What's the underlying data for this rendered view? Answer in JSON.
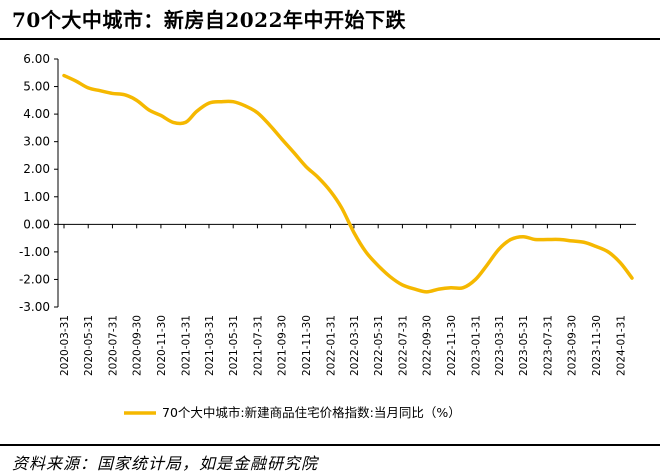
{
  "header": {
    "title": "70个大中城市：新房自2022年中开始下跌"
  },
  "footer": {
    "source": "资料来源：国家统计局，如是金融研究院"
  },
  "colors": {
    "series": "#F5B800",
    "axis": "#000000"
  },
  "chart_data": {
    "type": "line",
    "title": "70个大中城市：新房自2022年中开始下跌",
    "ylim": [
      -3.0,
      6.0
    ],
    "yticks": [
      "6.00",
      "5.00",
      "4.00",
      "3.00",
      "2.00",
      "1.00",
      "0.00",
      "-1.00",
      "-2.00",
      "-3.00"
    ],
    "ytick_values": [
      6,
      5,
      4,
      3,
      2,
      1,
      0,
      -1,
      -2,
      -3
    ],
    "xtick_labels": [
      "2020-03-31",
      "2020-05-31",
      "2020-07-31",
      "2020-09-30",
      "2020-11-30",
      "2021-01-31",
      "2021-03-31",
      "2021-05-31",
      "2021-07-31",
      "2021-09-30",
      "2021-11-30",
      "2022-01-31",
      "2022-03-31",
      "2022-05-31",
      "2022-07-31",
      "2022-09-30",
      "2022-11-30",
      "2023-01-31",
      "2023-03-31",
      "2023-05-31",
      "2023-07-31",
      "2023-09-30",
      "2023-11-30",
      "2024-01-31"
    ],
    "grid": false,
    "legend_position": "bottom",
    "series": [
      {
        "name": "70个大中城市:新建商品住宅价格指数:当月同比（%）",
        "x": [
          "2020-03-31",
          "2020-04-30",
          "2020-05-31",
          "2020-06-30",
          "2020-07-31",
          "2020-08-31",
          "2020-09-30",
          "2020-10-31",
          "2020-11-30",
          "2020-12-31",
          "2021-01-31",
          "2021-02-28",
          "2021-03-31",
          "2021-04-30",
          "2021-05-31",
          "2021-06-30",
          "2021-07-31",
          "2021-08-31",
          "2021-09-30",
          "2021-10-31",
          "2021-11-30",
          "2021-12-31",
          "2022-01-31",
          "2022-02-28",
          "2022-03-31",
          "2022-04-30",
          "2022-05-31",
          "2022-06-30",
          "2022-07-31",
          "2022-08-31",
          "2022-09-30",
          "2022-10-31",
          "2022-11-30",
          "2022-12-31",
          "2023-01-31",
          "2023-02-28",
          "2023-03-31",
          "2023-04-30",
          "2023-05-31",
          "2023-06-30",
          "2023-07-31",
          "2023-08-31",
          "2023-09-30",
          "2023-10-31",
          "2023-11-30",
          "2023-12-31",
          "2024-01-31",
          "2024-02-29"
        ],
        "values": [
          5.4,
          5.2,
          4.95,
          4.85,
          4.75,
          4.7,
          4.5,
          4.15,
          3.95,
          3.7,
          3.7,
          4.1,
          4.4,
          4.45,
          4.45,
          4.3,
          4.05,
          3.6,
          3.1,
          2.6,
          2.1,
          1.7,
          1.2,
          0.6,
          -0.3,
          -1.0,
          -1.5,
          -1.9,
          -2.2,
          -2.35,
          -2.45,
          -2.35,
          -2.3,
          -2.3,
          -2.0,
          -1.5,
          -0.9,
          -0.55,
          -0.45,
          -0.55,
          -0.55,
          -0.55,
          -0.6,
          -0.65,
          -0.8,
          -1.0,
          -1.4,
          -1.95
        ]
      }
    ]
  }
}
